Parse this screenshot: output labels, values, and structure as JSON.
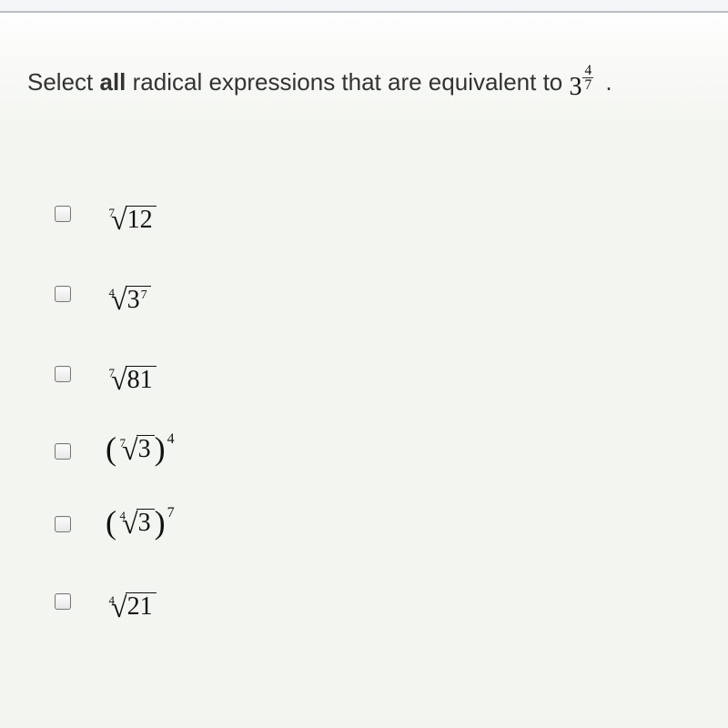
{
  "question": {
    "prefix": "Select ",
    "bold": "all",
    "suffix": " radical expressions that are equivalent to ",
    "target_base": "3",
    "target_exp_num": "4",
    "target_exp_den": "7",
    "trailing": "."
  },
  "options": [
    {
      "id": "opt-1",
      "kind": "root",
      "root_index": "7",
      "radicand": "12",
      "rad_exp": ""
    },
    {
      "id": "opt-2",
      "kind": "root",
      "root_index": "4",
      "radicand": "3",
      "rad_exp": "7"
    },
    {
      "id": "opt-3",
      "kind": "root",
      "root_index": "7",
      "radicand": "81",
      "rad_exp": ""
    },
    {
      "id": "opt-4",
      "kind": "paren-root",
      "root_index": "7",
      "radicand": "3",
      "outer_exp": "4"
    },
    {
      "id": "opt-5",
      "kind": "paren-root",
      "root_index": "4",
      "radicand": "3",
      "outer_exp": "7"
    },
    {
      "id": "opt-6",
      "kind": "root",
      "root_index": "4",
      "radicand": "21",
      "rad_exp": ""
    }
  ],
  "colors": {
    "text": "#333333",
    "math": "#111111",
    "bg": "#f5f7f2"
  }
}
